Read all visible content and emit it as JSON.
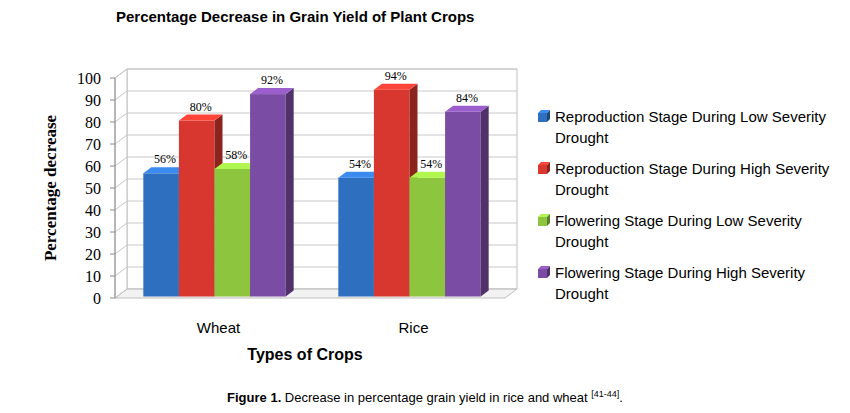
{
  "chart_data": {
    "type": "bar",
    "title": "Percentage Decrease in Grain Yield of Plant Crops",
    "x_label": "Types of Crops",
    "y_label": "Percentage decrease",
    "categories": [
      "Wheat",
      "Rice"
    ],
    "series": [
      {
        "name": "Reproduction Stage During Low Severity Drought",
        "color": "#2f6fc0",
        "values": [
          56,
          54
        ],
        "value_labels": [
          "56%",
          "54%"
        ]
      },
      {
        "name": "Reproduction Stage During High Severity Drought",
        "color": "#d7372e",
        "values": [
          80,
          94
        ],
        "value_labels": [
          "80%",
          "94%"
        ]
      },
      {
        "name": "Flowering Stage During Low Severity Drought",
        "color": "#8dc53e",
        "values": [
          58,
          54
        ],
        "value_labels": [
          "58%",
          "54%"
        ]
      },
      {
        "name": "Flowering Stage During High Severity Drought",
        "color": "#7b4ca3",
        "values": [
          92,
          84
        ],
        "value_labels": [
          "92%",
          "84%"
        ]
      }
    ],
    "ylim": [
      0,
      100
    ],
    "yticks": [
      0,
      10,
      20,
      30,
      40,
      50,
      60,
      70,
      80,
      90,
      100
    ],
    "grid": true,
    "legend": "right",
    "data_labels": true,
    "caption": {
      "label": "Figure 1.",
      "text": "Decrease in percentage grain yield in rice and wheat",
      "ref": "[41-44]",
      "end": "."
    }
  }
}
